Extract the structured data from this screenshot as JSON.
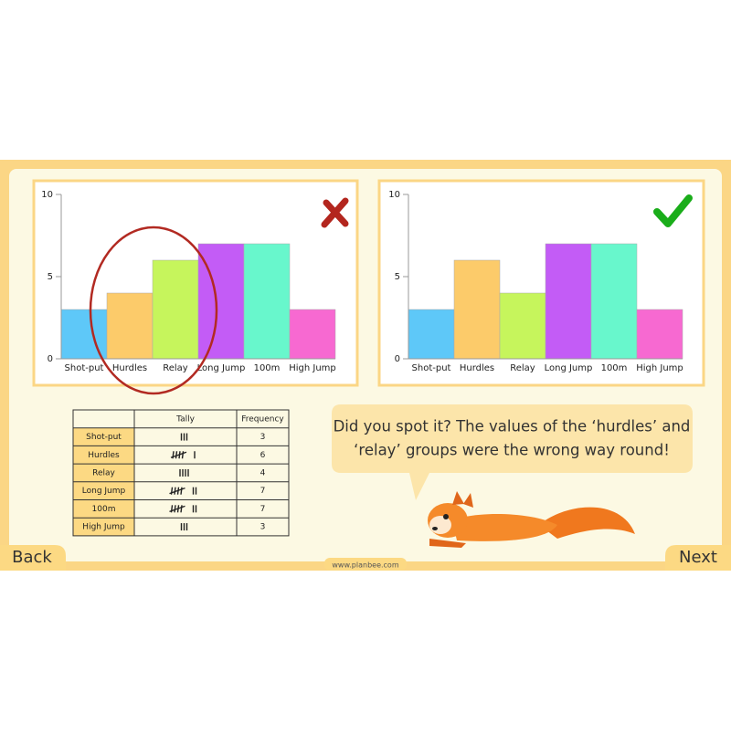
{
  "chart_data": [
    {
      "type": "bar",
      "categories": [
        "Shot-put",
        "Hurdles",
        "Relay",
        "Long Jump",
        "100m",
        "High Jump"
      ],
      "values": [
        3,
        4,
        6,
        7,
        7,
        3
      ],
      "colors": [
        "#5ec8f8",
        "#fccb6a",
        "#c6f55c",
        "#c35cf6",
        "#68f7cc",
        "#f769d1"
      ],
      "ylim": [
        0,
        10
      ],
      "yticks": [
        0,
        5,
        10
      ]
    },
    {
      "type": "bar",
      "categories": [
        "Shot-put",
        "Hurdles",
        "Relay",
        "Long Jump",
        "100m",
        "High Jump"
      ],
      "values": [
        3,
        6,
        4,
        7,
        7,
        3
      ],
      "colors": [
        "#5ec8f8",
        "#fccb6a",
        "#c6f55c",
        "#c35cf6",
        "#68f7cc",
        "#f769d1"
      ],
      "ylim": [
        0,
        10
      ],
      "yticks": [
        0,
        5,
        10
      ]
    }
  ],
  "table": {
    "headers": [
      "Tally",
      "Frequency"
    ],
    "rows": [
      {
        "event": "Shot-put",
        "frequency": 3
      },
      {
        "event": "Hurdles",
        "frequency": 6
      },
      {
        "event": "Relay",
        "frequency": 4
      },
      {
        "event": "Long Jump",
        "frequency": 7
      },
      {
        "event": "100m",
        "frequency": 7
      },
      {
        "event": "High Jump",
        "frequency": 3
      }
    ]
  },
  "speech": {
    "lines": [
      "Did you spot it? The values of the ‘hurdles’ and",
      "‘relay’ groups were the wrong way round!"
    ]
  },
  "nav": {
    "back": "Back",
    "next": "Next"
  },
  "footer": "www.planbee.com"
}
